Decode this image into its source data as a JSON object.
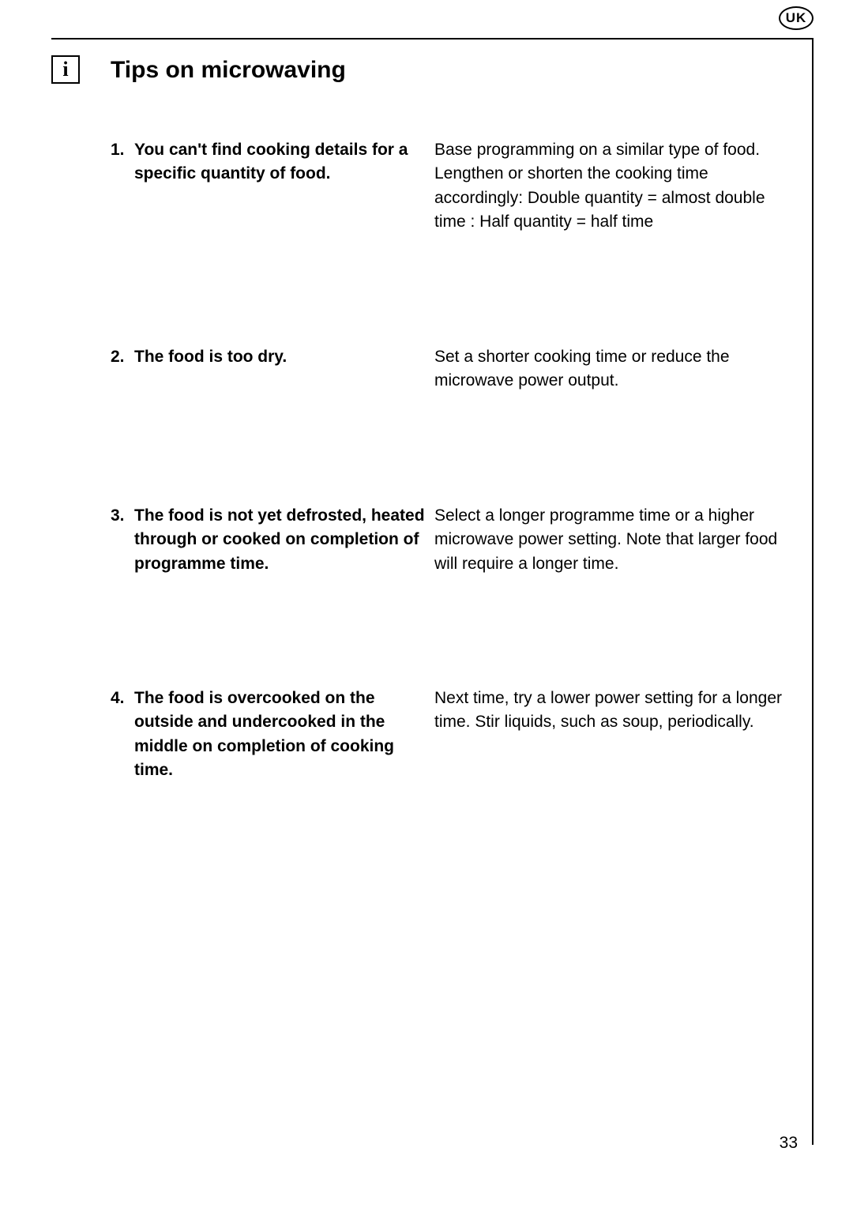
{
  "region_badge": "UK",
  "info_glyph": "i",
  "title": "Tips on microwaving",
  "page_number": "33",
  "tips": [
    {
      "number": "1.",
      "problem": "You can't find cooking details for  a specific quantity of food.",
      "solution": "Base programming on a similar type of food. Lengthen or shorten the cooking time accordingly: Double quantity = almost double time : Half quantity = half time"
    },
    {
      "number": "2.",
      "problem": "The food is too dry.",
      "solution": "Set a shorter cooking time or reduce the microwave power output."
    },
    {
      "number": "3.",
      "problem": "The food is not yet defrosted, heated through or cooked on completion of programme time.",
      "solution": "Select a longer programme time or a higher microwave power setting. Note that larger food will require a longer time."
    },
    {
      "number": "4.",
      "problem": "The food is overcooked on the outside and undercooked in the middle on completion of cooking time.",
      "solution": "Next time, try a lower power setting for a longer time. Stir liquids, such as soup, periodically."
    }
  ]
}
